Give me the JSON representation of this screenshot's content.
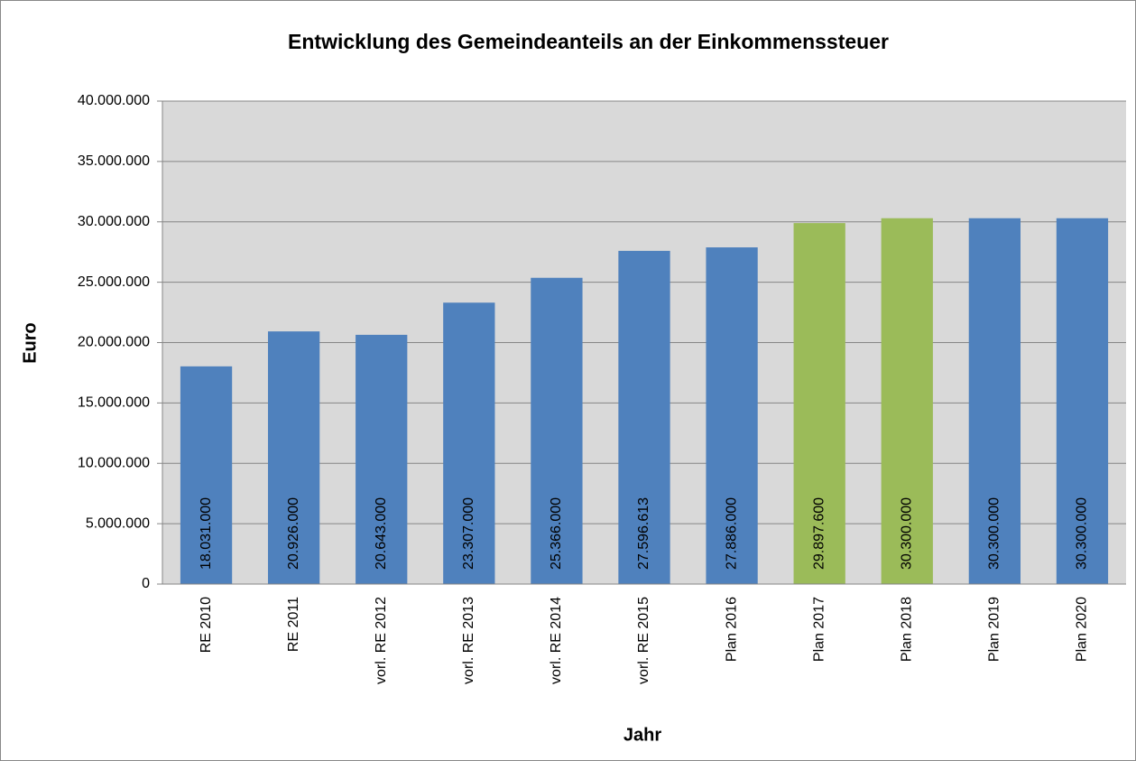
{
  "chart_data": {
    "type": "bar",
    "title": "Entwicklung des Gemeindeanteils an der Einkommenssteuer",
    "y_label": "Euro",
    "x_label": "Jahr",
    "categories": [
      "RE 2010",
      "RE 2011",
      "vorl. RE 2012",
      "vorl. RE 2013",
      "vorl. RE 2014",
      "vorl. RE 2015",
      "Plan 2016",
      "Plan 2017",
      "Plan 2018",
      "Plan 2019",
      "Plan 2020"
    ],
    "values": [
      18031000,
      20926000,
      20643000,
      23307000,
      25366000,
      27596613,
      27886000,
      29897600,
      30300000,
      30300000,
      30300000
    ],
    "value_labels": [
      "18.031.000",
      "20.926.000",
      "20.643.000",
      "23.307.000",
      "25.366.000",
      "27.596.613",
      "27.886.000",
      "29.897.600",
      "30.300.000",
      "30.300.000",
      "30.300.000"
    ],
    "colors": [
      "#4f81bd",
      "#4f81bd",
      "#4f81bd",
      "#4f81bd",
      "#4f81bd",
      "#4f81bd",
      "#4f81bd",
      "#9bbb59",
      "#9bbb59",
      "#4f81bd",
      "#4f81bd"
    ],
    "ylim": [
      0,
      40000000
    ],
    "yticks": [
      0,
      {
        "value": 5000000,
        "label": "5.000.000"
      },
      {
        "value": 10000000,
        "label": "10.000.000"
      },
      {
        "value": 15000000,
        "label": "15.000.000"
      },
      {
        "value": 20000000,
        "label": "20.000.000"
      },
      {
        "value": 25000000,
        "label": "25.000.000"
      },
      {
        "value": 30000000,
        "label": "30.000.000"
      },
      {
        "value": 35000000,
        "label": "35.000.000"
      },
      {
        "value": 40000000,
        "label": "40.000.000"
      }
    ],
    "grid": true
  }
}
